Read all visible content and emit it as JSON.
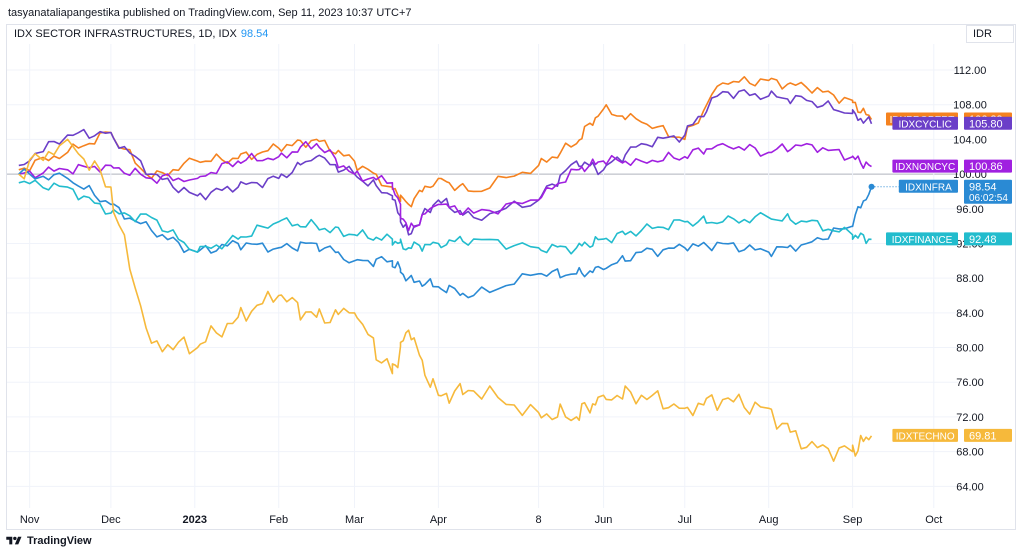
{
  "header": {
    "attribution": "tasyanataliapangestika published on TradingView.com, Sep 11, 2023 10:37 UTC+7",
    "legend_title": "IDX SECTOR INFRASTRUCTURES, 1D, IDX",
    "legend_last": "98.54",
    "currency": "IDR"
  },
  "footer": {
    "brand": "TradingView"
  },
  "colors": {
    "infra": "#2a8ad4",
    "finance": "#22bccd",
    "propert": "#f5821f",
    "cyclic": "#6b3fc8",
    "noncyc": "#a020e0",
    "techno": "#f6b93b",
    "grid": "#f0f3fa",
    "axis_text": "#131722"
  },
  "chart_data": {
    "type": "line",
    "title": "IDX SECTOR INFRASTRUCTURES, 1D, IDX",
    "xlabel": "",
    "ylabel": "",
    "x_ticks": [
      "Nov",
      "Dec",
      "2023",
      "Feb",
      "Mar",
      "Apr",
      "8",
      "Jun",
      "Jul",
      "Aug",
      "Sep",
      "Oct"
    ],
    "y_ticks": [
      "64.00",
      "68.00",
      "72.00",
      "76.00",
      "80.00",
      "84.00",
      "88.00",
      "92.00",
      "96.00",
      "100.00",
      "104.00",
      "108.00",
      "112.00"
    ],
    "ylim": [
      61.5,
      115
    ],
    "baseline": 100,
    "grid": true,
    "x": [
      "2022-10-28",
      "2022-11-15",
      "2022-12-01",
      "2022-12-16",
      "2023-01-02",
      "2023-01-17",
      "2023-02-01",
      "2023-02-15",
      "2023-03-01",
      "2023-03-15",
      "2023-03-21",
      "2023-04-01",
      "2023-04-14",
      "2023-05-08",
      "2023-05-22",
      "2023-06-01",
      "2023-06-15",
      "2023-07-01",
      "2023-07-15",
      "2023-08-01",
      "2023-08-15",
      "2023-09-01",
      "2023-09-08"
    ],
    "series": [
      {
        "name": "IDXPROPERT",
        "key": "propert",
        "last_label": "106.29",
        "values": [
          100.5,
          102.5,
          104.8,
          99.5,
          101.5,
          101.8,
          103.0,
          104.0,
          101.5,
          98.5,
          96.5,
          99.5,
          98.0,
          101.0,
          103.5,
          107.5,
          106.0,
          104.0,
          110.5,
          110.8,
          110.0,
          108.5,
          106.29
        ]
      },
      {
        "name": "IDXCYCLIC",
        "key": "cyclic",
        "last_label": "105.80",
        "values": [
          101.0,
          104.5,
          104.8,
          100.0,
          97.5,
          98.5,
          99.5,
          102.0,
          100.0,
          97.5,
          93.0,
          97.0,
          95.0,
          97.0,
          101.5,
          100.5,
          103.5,
          104.5,
          109.5,
          109.0,
          108.5,
          107.0,
          105.8
        ]
      },
      {
        "name": "IDXNONCYC",
        "key": "noncyc",
        "last_label": "100.86",
        "values": [
          100.0,
          100.5,
          101.0,
          99.5,
          99.5,
          101.5,
          102.0,
          103.5,
          100.0,
          99.0,
          93.5,
          96.5,
          95.5,
          97.0,
          100.5,
          101.5,
          101.5,
          102.0,
          103.5,
          102.5,
          103.5,
          102.0,
          100.86
        ]
      },
      {
        "name": "IDXINFRA",
        "key": "infra",
        "last_label": "98.54",
        "sub_label": "06:02:54",
        "values": [
          100.0,
          99.5,
          96.5,
          93.5,
          91.0,
          92.0,
          91.5,
          92.0,
          90.0,
          90.0,
          88.0,
          87.0,
          86.0,
          88.5,
          88.5,
          89.0,
          91.0,
          91.5,
          92.0,
          91.0,
          92.0,
          94.0,
          98.54
        ]
      },
      {
        "name": "IDXFINANCE",
        "key": "finance",
        "last_label": "92.48",
        "values": [
          99.0,
          98.5,
          95.5,
          95.0,
          91.0,
          92.5,
          94.5,
          94.0,
          93.0,
          92.5,
          91.5,
          92.0,
          92.5,
          91.5,
          91.5,
          92.5,
          93.5,
          94.5,
          94.5,
          95.0,
          94.5,
          93.0,
          92.48
        ]
      },
      {
        "name": "IDXTECHNO",
        "key": "techno",
        "last_label": "69.81",
        "values": [
          100.0,
          104.0,
          98.5,
          80.5,
          80.0,
          83.5,
          86.0,
          83.5,
          84.0,
          77.0,
          82.0,
          74.5,
          75.0,
          72.5,
          72.0,
          74.5,
          74.5,
          73.0,
          74.0,
          73.0,
          68.5,
          68.0,
          69.81
        ]
      }
    ]
  }
}
